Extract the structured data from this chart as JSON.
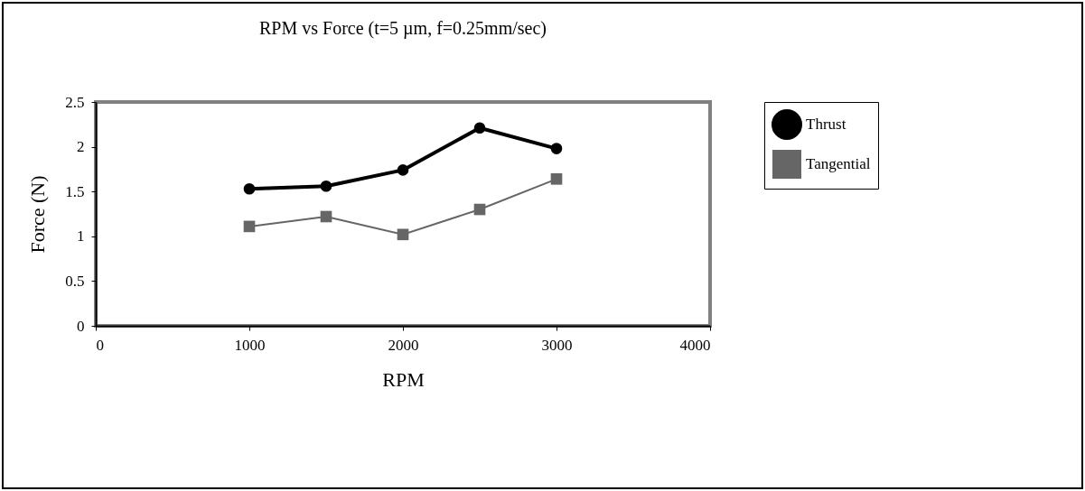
{
  "chart_data": {
    "type": "line",
    "title": "RPM vs Force (t=5 µm, f=0.25mm/sec)",
    "xlabel": "RPM",
    "ylabel": "Force (N)",
    "x": [
      1000,
      1500,
      2000,
      2500,
      3000
    ],
    "series": [
      {
        "name": "Thrust",
        "color": "#000000",
        "marker": "circle",
        "values": [
          1.53,
          1.56,
          1.74,
          2.21,
          1.98
        ]
      },
      {
        "name": "Tangential",
        "color": "#666666",
        "marker": "square",
        "values": [
          1.11,
          1.22,
          1.02,
          1.3,
          1.64
        ]
      }
    ],
    "xlim": [
      0,
      4000
    ],
    "xticks": [
      0,
      1000,
      2000,
      3000,
      4000
    ],
    "ylim": [
      0,
      2.5
    ],
    "yticks": [
      0,
      0.5,
      1,
      1.5,
      2,
      2.5
    ],
    "grid": false,
    "legend": "right"
  }
}
